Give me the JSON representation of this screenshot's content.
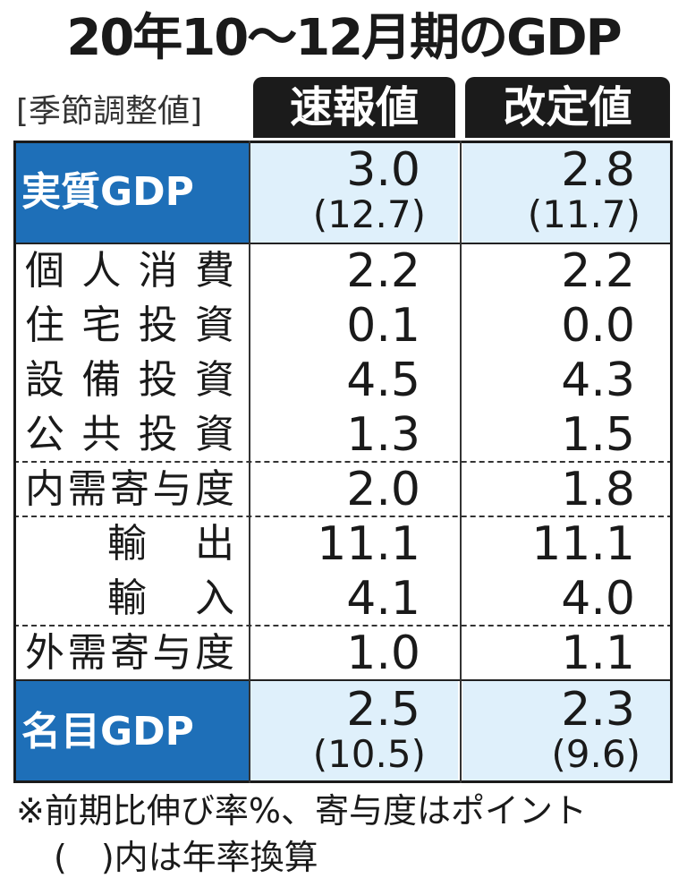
{
  "title": "20年10～12月期のGDP",
  "table": {
    "corner": "[季節調整値]",
    "columns": [
      "速報値",
      "改定値"
    ],
    "groups": [
      [
        {
          "label": "実質GDP",
          "values": [
            "3.0",
            "2.8"
          ],
          "annual": [
            "(12.7)",
            "(11.7)"
          ]
        }
      ],
      [
        {
          "label": "個人消費",
          "values": [
            "2.2",
            "2.2"
          ]
        },
        {
          "label": "住宅投資",
          "values": [
            "0.1",
            "0.0"
          ]
        },
        {
          "label": "設備投資",
          "values": [
            "4.5",
            "4.3"
          ]
        },
        {
          "label": "公共投資",
          "values": [
            "1.3",
            "1.5"
          ]
        }
      ],
      [
        {
          "label": "内需寄与度",
          "values": [
            "2.0",
            "1.8"
          ]
        }
      ],
      [
        {
          "label": "輸出",
          "values": [
            "11.1",
            "11.1"
          ]
        },
        {
          "label": "輸入",
          "values": [
            "4.1",
            "4.0"
          ]
        }
      ],
      [
        {
          "label": "外需寄与度",
          "values": [
            "1.0",
            "1.1"
          ]
        }
      ],
      [
        {
          "label": "名目GDP",
          "values": [
            "2.5",
            "2.3"
          ],
          "annual": [
            "(10.5)",
            "(9.6)"
          ]
        }
      ]
    ]
  },
  "notes": [
    "※前期比伸び率%、寄与度はポイント",
    "(　)内は年率換算"
  ]
}
